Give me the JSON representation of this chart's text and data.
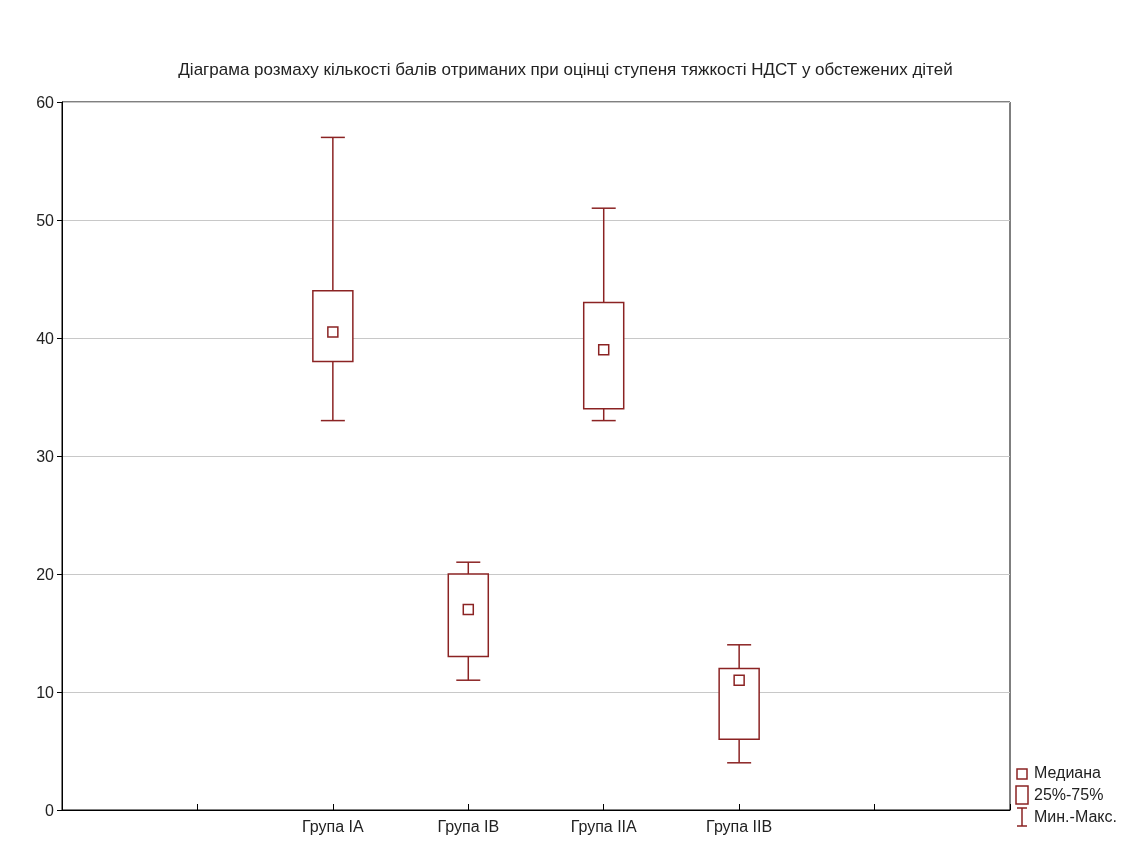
{
  "chart_data": {
    "type": "box",
    "title": "Діаграма розмаху кількості балів отриманих при оцінці ступеня тяжкості НДСТ у обстежених дітей",
    "categories": [
      null,
      null,
      "Група IA",
      "Група IB",
      "Група IIA",
      "Група IIB",
      null,
      null
    ],
    "boxes": [
      null,
      null,
      {
        "low": 33,
        "q1": 38,
        "median": 40.5,
        "q3": 44,
        "high": 57
      },
      {
        "low": 11,
        "q1": 13,
        "median": 17,
        "q3": 20,
        "high": 21
      },
      {
        "low": 33,
        "q1": 34,
        "median": 39,
        "q3": 43,
        "high": 51
      },
      {
        "low": 4,
        "q1": 6,
        "median": 11,
        "q3": 12,
        "high": 14
      },
      null,
      null
    ],
    "color": "#8b2323",
    "ylim": [
      0,
      60
    ],
    "yticks": [
      0,
      10,
      20,
      30,
      40,
      50,
      60
    ],
    "grid": "y",
    "marker": "square",
    "annotations": [
      "Медиана",
      "25%-75%",
      "Мин.-Макс."
    ]
  }
}
